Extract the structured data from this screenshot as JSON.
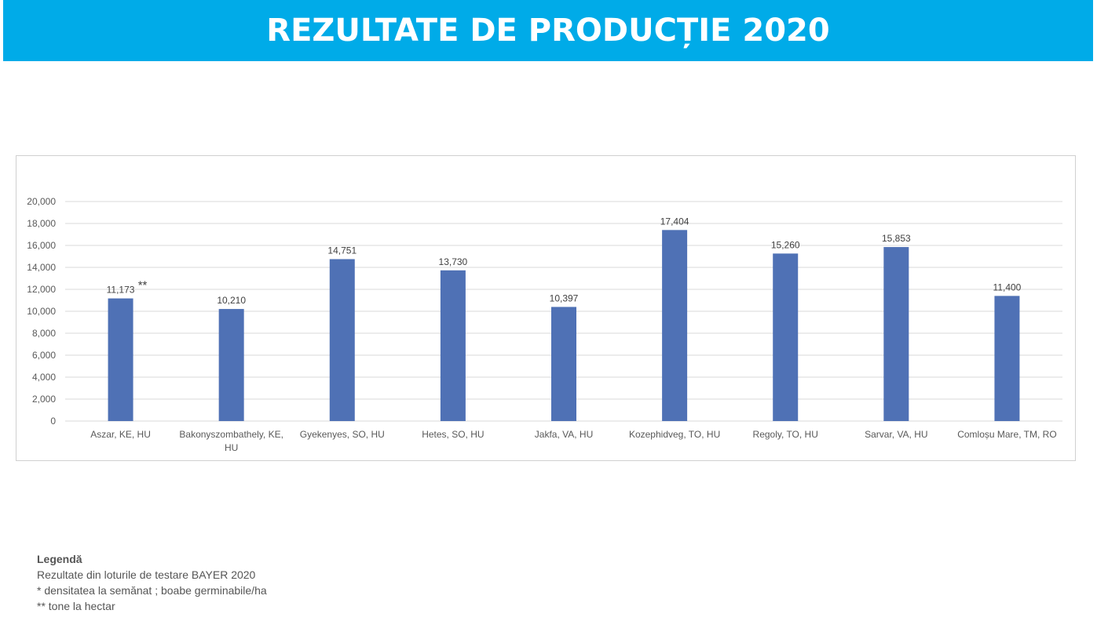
{
  "header": {
    "title": "REZULTATE DE PRODUCȚIE 2020"
  },
  "chart_data": {
    "type": "bar",
    "categories": [
      "Aszar, KE, HU",
      "Bakonyszombathely, KE, HU",
      "Gyekenyes, SO, HU",
      "Hetes, SO, HU",
      "Jakfa, VA, HU",
      "Kozephidveg, TO, HU",
      "Regoly, TO, HU",
      "Sarvar, VA, HU",
      "Comloșu Mare, TM, RO"
    ],
    "values": [
      11173,
      10210,
      14751,
      13730,
      10397,
      17404,
      15260,
      15853,
      11400
    ],
    "data_labels": [
      "11,173",
      "10,210",
      "14,751",
      "13,730",
      "10,397",
      "17,404",
      "15,260",
      "15,853",
      "11,400"
    ],
    "annotation": "**",
    "yticks": [
      "0",
      "2,000",
      "4,000",
      "6,000",
      "8,000",
      "10,000",
      "12,000",
      "14,000",
      "16,000",
      "18,000",
      "20,000"
    ],
    "ylim": [
      0,
      20000
    ],
    "grid": true,
    "bar_color": "#4F71B5"
  },
  "legend": {
    "title": "Legendă",
    "lines": [
      "Rezultate din loturile de testare BAYER 2020",
      "* densitatea la semănat ; boabe germinabile/ha",
      "** tone la hectar"
    ]
  }
}
